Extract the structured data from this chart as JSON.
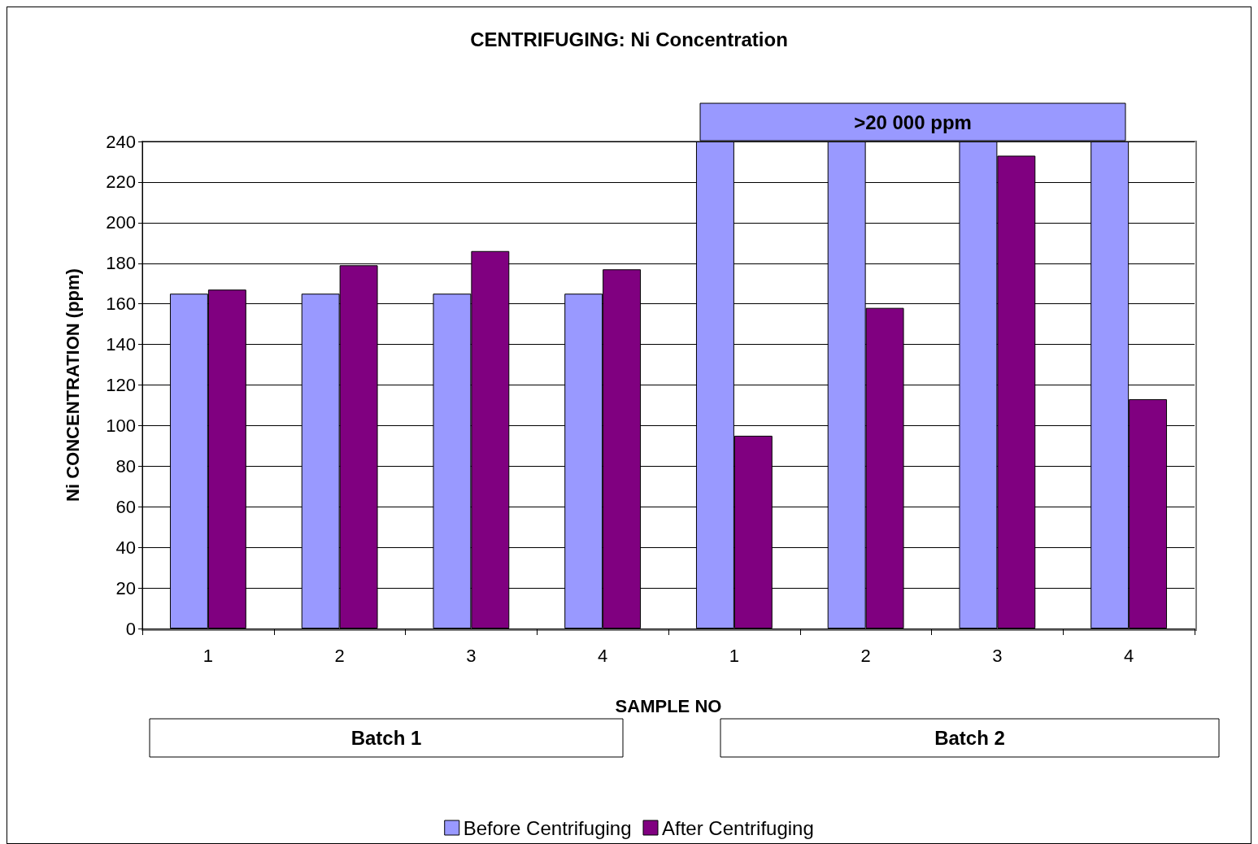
{
  "chart_data": {
    "type": "bar",
    "title": "CENTRIFUGING: Ni Concentration",
    "xlabel": "SAMPLE NO",
    "ylabel": "Ni CONCENTRATION (ppm)",
    "categories": [
      "1",
      "2",
      "3",
      "4",
      "1",
      "2",
      "3",
      "4"
    ],
    "series": [
      {
        "name": "Before Centrifuging",
        "color": "#9999ff",
        "values": [
          165,
          165,
          165,
          165,
          240,
          240,
          240,
          240
        ]
      },
      {
        "name": "After Centrifuging",
        "color": "#800080",
        "values": [
          167,
          179,
          186,
          177,
          95,
          158,
          233,
          113
        ]
      }
    ],
    "ylim": [
      0,
      240
    ],
    "yticks": [
      0,
      20,
      40,
      60,
      80,
      100,
      120,
      140,
      160,
      180,
      200,
      220,
      240
    ],
    "grid": "y",
    "legend": "bottom",
    "annotations": [
      ">20 000 ppm",
      "Batch 1",
      "Batch 2"
    ]
  }
}
